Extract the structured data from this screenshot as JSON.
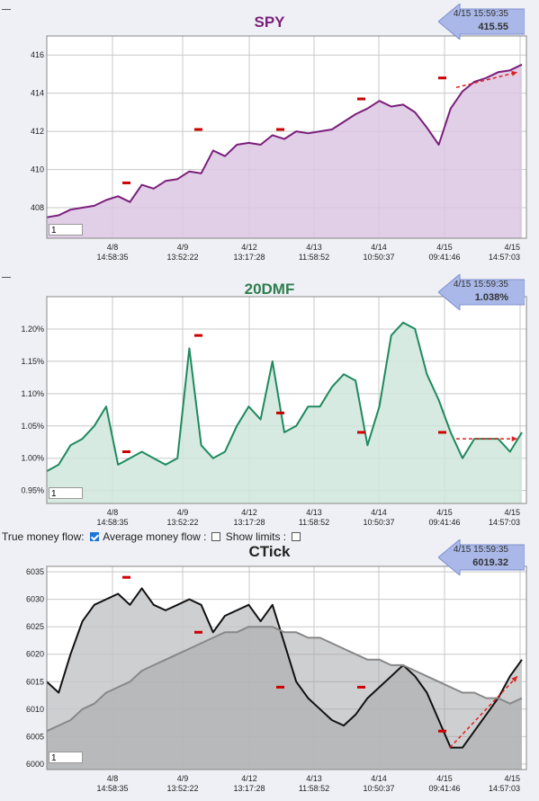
{
  "x_ticks": [
    {
      "date": "4/8",
      "time": "14:58:35"
    },
    {
      "date": "4/9",
      "time": "13:52:22"
    },
    {
      "date": "4/12",
      "time": "13:17:28"
    },
    {
      "date": "4/13",
      "time": "11:58:52"
    },
    {
      "date": "4/14",
      "time": "10:50:37"
    },
    {
      "date": "4/15",
      "time": "09:41:46"
    },
    {
      "date": "4/15",
      "time": "14:57:03"
    }
  ],
  "controls": {
    "true_flow_label": "True money flow:",
    "avg_flow_label": "Average money flow :",
    "show_limits_label": "Show limits :",
    "true_flow_checked": true,
    "show_limits_checked": false
  },
  "colors": {
    "spy": "#7a1f7a",
    "dmf": "#1e8a5e",
    "ctick": "#111111",
    "grid": "#c8c8c8",
    "marker": "#cc0000",
    "arrow": "#e02020"
  },
  "chart_data": [
    {
      "type": "area",
      "title": "SPY",
      "callout": {
        "time": "4/15 15:59:35",
        "value": "415.55"
      },
      "zoom_value": "1",
      "y_ticks": [
        "416",
        "414",
        "412",
        "410",
        "408"
      ],
      "ylim": [
        406.4,
        417.0
      ],
      "series": [
        {
          "values": [
            407.5,
            407.6,
            407.9,
            408.0,
            408.1,
            408.4,
            408.6,
            408.3,
            409.2,
            409.0,
            409.4,
            409.5,
            409.9,
            409.8,
            411.0,
            410.7,
            411.3,
            411.4,
            411.3,
            411.8,
            411.6,
            412.0,
            411.9,
            412.0,
            412.1,
            412.5,
            412.9,
            413.2,
            413.6,
            413.3,
            413.4,
            413.0,
            412.2,
            411.3,
            413.2,
            414.1,
            414.6,
            414.8,
            415.1,
            415.2,
            415.5
          ]
        }
      ],
      "markers": [
        409.3,
        412.1,
        412.1,
        413.7,
        414.8
      ],
      "trend": [
        414.3,
        415.1
      ]
    },
    {
      "type": "area",
      "title": "20DMF",
      "callout": {
        "time": "4/15 15:59:35",
        "value": "1.038%"
      },
      "zoom_value": "1",
      "y_ticks": [
        "1.20%",
        "1.15%",
        "1.10%",
        "1.05%",
        "1.00%",
        "0.95%"
      ],
      "ylim": [
        0.93,
        1.25
      ],
      "series": [
        {
          "values": [
            0.98,
            0.99,
            1.02,
            1.03,
            1.05,
            1.08,
            0.99,
            1.0,
            1.01,
            1.0,
            0.99,
            1.0,
            1.17,
            1.02,
            1.0,
            1.01,
            1.05,
            1.08,
            1.06,
            1.15,
            1.04,
            1.05,
            1.08,
            1.08,
            1.11,
            1.13,
            1.12,
            1.02,
            1.08,
            1.19,
            1.21,
            1.2,
            1.13,
            1.09,
            1.04,
            1.0,
            1.03,
            1.03,
            1.03,
            1.01,
            1.04
          ]
        }
      ],
      "markers": [
        1.01,
        1.19,
        1.07,
        1.04,
        1.04
      ],
      "trend": [
        1.03,
        1.03
      ]
    },
    {
      "type": "area",
      "title": "CTick",
      "callout": {
        "time": "4/15 15:59:35",
        "value": "6019.32"
      },
      "zoom_value": "1",
      "y_ticks": [
        "6035",
        "6030",
        "6025",
        "6020",
        "6015",
        "6010",
        "6005",
        "6000"
      ],
      "ylim": [
        5999,
        6036
      ],
      "series": [
        {
          "values": [
            6015,
            6013,
            6020,
            6026,
            6029,
            6030,
            6031,
            6029,
            6032,
            6029,
            6028,
            6029,
            6030,
            6029,
            6024,
            6027,
            6028,
            6029,
            6026,
            6029,
            6022,
            6015,
            6012,
            6010,
            6008,
            6007,
            6009,
            6012,
            6014,
            6016,
            6018,
            6016,
            6013,
            6008,
            6003,
            6003,
            6006,
            6009,
            6012,
            6016,
            6019
          ]
        },
        {
          "values": [
            6006,
            6007,
            6008,
            6010,
            6011,
            6013,
            6014,
            6015,
            6017,
            6018,
            6019,
            6020,
            6021,
            6022,
            6023,
            6024,
            6024,
            6025,
            6025,
            6025,
            6024,
            6024,
            6023,
            6023,
            6022,
            6021,
            6020,
            6019,
            6019,
            6018,
            6018,
            6017,
            6016,
            6015,
            6014,
            6013,
            6013,
            6012,
            6012,
            6011,
            6012
          ]
        }
      ],
      "markers": [
        6034,
        6024,
        6014,
        6014,
        6006
      ],
      "trend": [
        6003,
        6016
      ]
    }
  ]
}
